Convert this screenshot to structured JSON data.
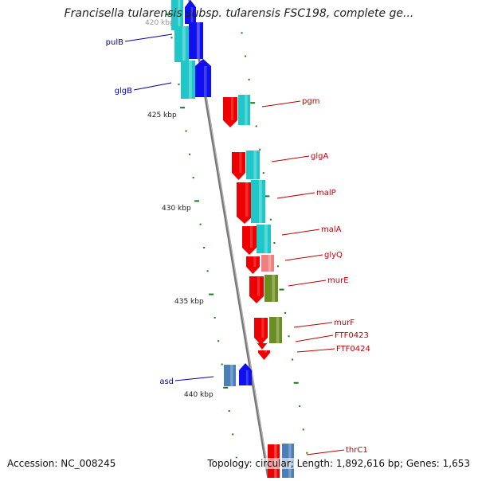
{
  "title": "Francisella tularensis subsp. tularensis FSC198, complete ge...",
  "footer": {
    "accession": "Accession: NC_008245",
    "summary": "Topology: circular; Length: 1,892,616 bp; Genes: 1,653"
  },
  "colors": {
    "backbone": "#8a8a8a",
    "ticks": "#1a7a1a",
    "forward_label": "#c00000",
    "reverse_label": "#0000aa",
    "red": "#ee0000",
    "cyan": "#1ec8c8",
    "blue": "#1010ee",
    "pink": "#ee8080",
    "olive": "#6b8e23",
    "steel": "#4a7fb8"
  },
  "axis_labels": [
    "420 kbp",
    "425 kbp",
    "430 kbp",
    "435 kbp",
    "440 kbp"
  ],
  "genes": [
    {
      "name": "pulB",
      "strand": "reverse",
      "color": "blue"
    },
    {
      "name": "glgB",
      "strand": "reverse",
      "color": "blue"
    },
    {
      "name": "pgm",
      "strand": "forward",
      "color": "red"
    },
    {
      "name": "glgA",
      "strand": "forward",
      "color": "red"
    },
    {
      "name": "malP",
      "strand": "forward",
      "color": "red"
    },
    {
      "name": "malA",
      "strand": "forward",
      "color": "red"
    },
    {
      "name": "glyQ",
      "strand": "forward",
      "color": "red"
    },
    {
      "name": "murE",
      "strand": "forward",
      "color": "red"
    },
    {
      "name": "murF",
      "strand": "forward",
      "color": "red"
    },
    {
      "name": "FTF0423",
      "strand": "forward",
      "color": "red"
    },
    {
      "name": "FTF0424",
      "strand": "forward",
      "color": "red"
    },
    {
      "name": "asd",
      "strand": "reverse",
      "color": "blue"
    },
    {
      "name": "thrC1",
      "strand": "forward",
      "color": "red"
    }
  ]
}
